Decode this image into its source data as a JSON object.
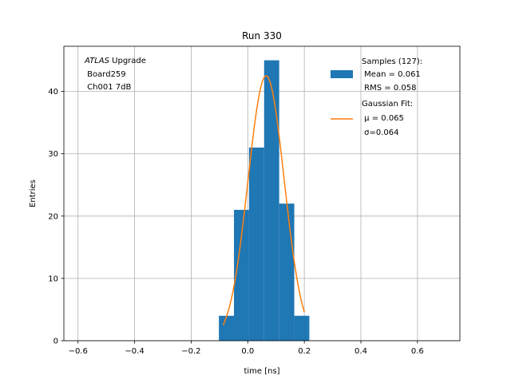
{
  "chart_data": {
    "type": "bar",
    "title": "Run 330",
    "xlabel": "time [ns]",
    "ylabel": "Entries",
    "xlim": [
      -0.65,
      0.75
    ],
    "ylim": [
      0,
      47.25
    ],
    "xticks": [
      -0.6,
      -0.4,
      -0.2,
      0.0,
      0.2,
      0.4,
      0.6
    ],
    "xtick_labels": [
      "−0.6",
      "−0.4",
      "−0.2",
      "0.0",
      "0.2",
      "0.4",
      "0.6"
    ],
    "yticks": [
      0,
      10,
      20,
      30,
      40
    ],
    "ytick_labels": [
      "0",
      "10",
      "20",
      "30",
      "40"
    ],
    "grid": true,
    "annotation": {
      "italic": "ATLAS",
      "line1_rest": " Upgrade",
      "line2": " Board259",
      "line3": " Ch001 7dB"
    },
    "histogram": {
      "name": "Samples (127):",
      "color": "#1f77b4",
      "bin_edges": [
        -0.102,
        -0.0487,
        0.0046,
        0.0579,
        0.1112,
        0.1645,
        0.2178
      ],
      "counts": [
        4,
        21,
        31,
        45,
        22,
        4
      ],
      "stats": [
        " Mean = 0.061",
        " RMS = 0.058"
      ]
    },
    "fit": {
      "name": "Gaussian Fit:",
      "color": "#ff7f0e",
      "mu": 0.065,
      "sigma": 0.064,
      "amplitude": 42.5,
      "x_range": [
        -0.087,
        0.2
      ],
      "params": [
        " μ = 0.065",
        " σ=0.064"
      ]
    },
    "legend_position": "upper right"
  }
}
